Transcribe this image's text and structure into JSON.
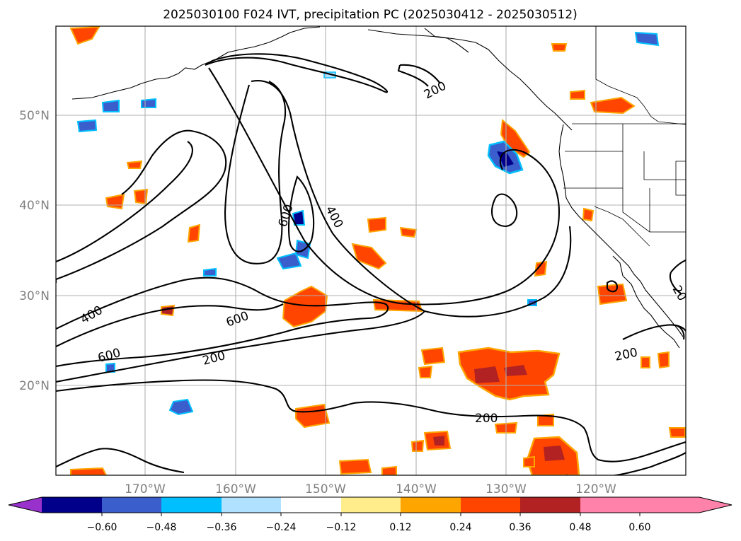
{
  "title": "2025030100 F024 IVT, precipitation PC (2025030412 - 2025030512)",
  "lat_labels": [
    "50°N",
    "40°N",
    "30°N",
    "20°N"
  ],
  "lon_labels": [
    "170°W",
    "160°W",
    "150°W",
    "140°W",
    "130°W",
    "120°W"
  ],
  "contour_labels": {
    "c1": "200",
    "c2": "600",
    "c3": "400",
    "c4": "400",
    "c5": "600",
    "c6": "600",
    "c7": "200",
    "c8": "200",
    "c9": "200",
    "c10": "20"
  },
  "colorbar": {
    "colors": [
      "#9932CC",
      "#00008B",
      "#3A5FCD",
      "#00BFFF",
      "#B0E2FF",
      "#FFFFFF",
      "#FFEC8B",
      "#FFA500",
      "#FF4500",
      "#B22222",
      "#FF82AB"
    ],
    "ticks": [
      "−0.60",
      "−0.48",
      "−0.36",
      "−0.24",
      "−0.12",
      "0.12",
      "0.24",
      "0.36",
      "0.48",
      "0.60"
    ]
  }
}
